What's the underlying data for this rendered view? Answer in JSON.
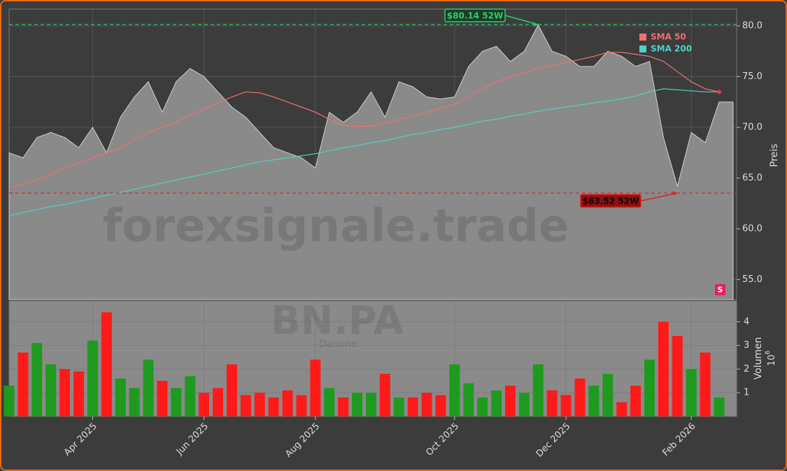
{
  "chart_data": {
    "type": "area",
    "watermark": "forexsignale.trade",
    "ticker": "BN.PA",
    "company": "Danone",
    "ylabel": "Preis",
    "legend": "upper right",
    "grid": true,
    "signal": "S",
    "categories": [
      null,
      null,
      null,
      null,
      null,
      null,
      "Apr 2025",
      null,
      null,
      null,
      null,
      null,
      null,
      null,
      "Jun 2025",
      null,
      null,
      null,
      null,
      null,
      null,
      null,
      "Aug 2025",
      null,
      null,
      null,
      null,
      null,
      null,
      null,
      null,
      null,
      "Oct 2025",
      null,
      null,
      null,
      null,
      null,
      null,
      null,
      "Dec 2025",
      null,
      null,
      null,
      null,
      null,
      null,
      null,
      null,
      "Feb 2026",
      null,
      null
    ],
    "ylim": [
      53.03,
      81.66
    ],
    "yticks": [
      {
        "value": 55,
        "label": "55.0"
      },
      {
        "value": 60,
        "label": "60.0"
      },
      {
        "value": 65,
        "label": "65.0"
      },
      {
        "value": 70,
        "label": "70.0"
      },
      {
        "value": 75,
        "label": "75.0"
      },
      {
        "value": 80,
        "label": "80.0"
      }
    ],
    "series": [
      {
        "color": "#8a8a8a",
        "values": [
          67.5,
          67,
          69,
          69.5,
          69,
          68,
          70,
          67.5,
          71,
          73,
          74.5,
          71.5,
          74.5,
          75.8,
          75,
          73.5,
          72,
          71,
          69.5,
          68,
          67.5,
          67,
          66,
          71.5,
          70.5,
          71.5,
          73.5,
          71,
          74.5,
          74,
          73,
          72.8,
          73,
          76,
          77.5,
          78,
          76.5,
          77.5,
          80.1,
          77.5,
          77,
          76,
          76,
          77.5,
          77,
          76,
          76.5,
          69,
          64.2,
          69.5,
          68.5,
          72.5
        ]
      },
      {
        "name": "SMA 50",
        "color": "#f07070",
        "values": [
          64,
          64.4,
          64.8,
          65.4,
          66,
          66.5,
          67,
          67.5,
          68,
          68.8,
          69.5,
          70,
          70.5,
          71.2,
          71.8,
          72.4,
          73,
          73.5,
          73.4,
          73,
          72.5,
          72,
          71.5,
          70.8,
          70.2,
          70.1,
          70.1,
          70.4,
          70.8,
          71.1,
          71.5,
          71.9,
          72.3,
          73,
          73.8,
          74.5,
          75,
          75.4,
          75.8,
          76.1,
          76.4,
          76.7,
          77,
          77.4,
          77.4,
          77.2,
          77,
          76.5,
          75.5,
          74.5,
          73.8,
          73.5
        ]
      },
      {
        "name": "SMA 200",
        "color": "#4fd1c5",
        "values": [
          61.3,
          61.6,
          61.9,
          62.2,
          62.4,
          62.7,
          63,
          63.3,
          63.6,
          63.9,
          64.2,
          64.5,
          64.8,
          65.1,
          65.4,
          65.7,
          66,
          66.3,
          66.6,
          66.8,
          67,
          67.2,
          67.4,
          67.7,
          68,
          68.2,
          68.5,
          68.7,
          69,
          69.3,
          69.5,
          69.8,
          70,
          70.3,
          70.6,
          70.8,
          71.1,
          71.3,
          71.6,
          71.8,
          72,
          72.2,
          72.4,
          72.6,
          72.8,
          73.1,
          73.5,
          73.8,
          73.7,
          73.6,
          73.5,
          73.5
        ]
      }
    ],
    "annotations": [
      {
        "value": 80.14,
        "label": "$80.14 52W",
        "color": "#2ecc71"
      },
      {
        "value": 63.52,
        "label": "$63.52 52W",
        "color": "#e02020"
      }
    ],
    "volume": {
      "ylabel": "Volumen",
      "scale_base": "10",
      "scale_power": 6,
      "ylim": [
        0,
        4.88
      ],
      "yticks": [
        1,
        2,
        3,
        4
      ],
      "values": [
        1.3,
        2.7,
        3.1,
        2.2,
        2.0,
        1.9,
        3.2,
        4.4,
        1.6,
        1.2,
        2.4,
        1.5,
        1.2,
        1.7,
        1.0,
        1.2,
        2.2,
        0.9,
        1.0,
        0.8,
        1.1,
        0.9,
        2.4,
        1.2,
        0.8,
        1.0,
        1.0,
        1.8,
        0.8,
        0.8,
        1.0,
        0.9,
        2.2,
        1.4,
        0.8,
        1.1,
        1.3,
        1.0,
        2.2,
        1.1,
        0.9,
        1.6,
        1.3,
        1.8,
        0.6,
        1.3,
        2.4,
        4.0,
        3.4,
        2.0,
        2.7,
        0.8
      ],
      "colors": [
        "#1e9a1e",
        "#ff1a1a",
        "#1e9a1e",
        "#1e9a1e",
        "#ff1a1a",
        "#ff1a1a",
        "#1e9a1e",
        "#ff1a1a",
        "#1e9a1e",
        "#1e9a1e",
        "#1e9a1e",
        "#ff1a1a",
        "#1e9a1e",
        "#1e9a1e",
        "#ff1a1a",
        "#ff1a1a",
        "#ff1a1a",
        "#ff1a1a",
        "#ff1a1a",
        "#ff1a1a",
        "#ff1a1a",
        "#ff1a1a",
        "#ff1a1a",
        "#1e9a1e",
        "#ff1a1a",
        "#1e9a1e",
        "#1e9a1e",
        "#ff1a1a",
        "#1e9a1e",
        "#ff1a1a",
        "#ff1a1a",
        "#ff1a1a",
        "#1e9a1e",
        "#1e9a1e",
        "#1e9a1e",
        "#1e9a1e",
        "#ff1a1a",
        "#1e9a1e",
        "#1e9a1e",
        "#ff1a1a",
        "#ff1a1a",
        "#ff1a1a",
        "#1e9a1e",
        "#1e9a1e",
        "#ff1a1a",
        "#ff1a1a",
        "#1e9a1e",
        "#ff1a1a",
        "#ff1a1a",
        "#1e9a1e",
        "#ff1a1a",
        "#1e9a1e"
      ]
    }
  }
}
